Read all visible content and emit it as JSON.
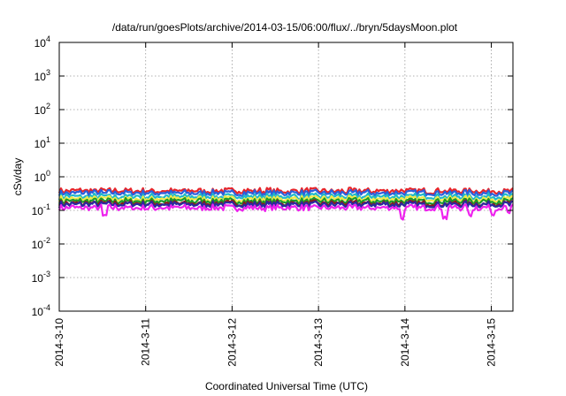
{
  "chart_data": {
    "type": "line",
    "title": "/data/run/goesPlots/archive/2014-03-15/06:00/flux/../bryn/5daysMoon.plot",
    "xlabel": "Coordinated Universal Time (UTC)",
    "ylabel": "cSv/day",
    "y_scale": "log",
    "ylim": [
      0.0001,
      10000
    ],
    "xlim": [
      "2014-03-10",
      "2014-03-15 06:00"
    ],
    "y_ticks": [
      {
        "base": "10",
        "exp": "4"
      },
      {
        "base": "10",
        "exp": "3"
      },
      {
        "base": "10",
        "exp": "2"
      },
      {
        "base": "10",
        "exp": "1"
      },
      {
        "base": "10",
        "exp": "0"
      },
      {
        "base": "10",
        "exp": "-1"
      },
      {
        "base": "10",
        "exp": "-2"
      },
      {
        "base": "10",
        "exp": "-3"
      },
      {
        "base": "10",
        "exp": "-4"
      }
    ],
    "x_ticks": [
      "2014-3-10",
      "2014-3-11",
      "2014-3-12",
      "2014-3-13",
      "2014-3-14",
      "2014-3-15"
    ],
    "grid": true,
    "legend": "none",
    "series": [
      {
        "color": "#e8252a",
        "level": 0.38
      },
      {
        "color": "#2b5fdb",
        "level": 0.33
      },
      {
        "color": "#1fb8c8",
        "level": 0.26
      },
      {
        "color": "#f2ea4a",
        "level": 0.22
      },
      {
        "color": "#1a9a2a",
        "level": 0.19
      },
      {
        "color": "#8a1a1a",
        "level": 0.16
      },
      {
        "color": "#2a2aa0",
        "level": 0.15
      },
      {
        "color": "#ee22ee",
        "level": 0.12
      }
    ]
  }
}
